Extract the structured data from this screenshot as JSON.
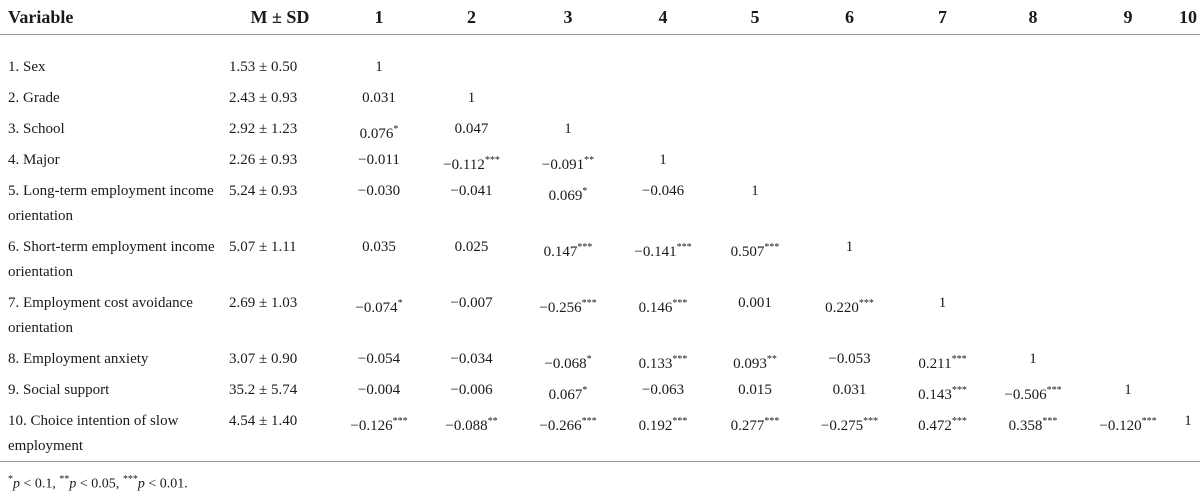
{
  "headers": [
    "Variable",
    "M ± SD",
    "1",
    "2",
    "3",
    "4",
    "5",
    "6",
    "7",
    "8",
    "9",
    "10"
  ],
  "rows": [
    {
      "label": "1. Sex",
      "msd": "1.53 ± 0.50",
      "cells": [
        "1",
        "",
        "",
        "",
        "",
        "",
        "",
        "",
        "",
        ""
      ]
    },
    {
      "label": "2. Grade",
      "msd": "2.43 ± 0.93",
      "cells": [
        "0.031",
        "1",
        "",
        "",
        "",
        "",
        "",
        "",
        "",
        ""
      ]
    },
    {
      "label": "3. School",
      "msd": "2.92 ± 1.23",
      "cells": [
        "0.076*",
        "0.047",
        "1",
        "",
        "",
        "",
        "",
        "",
        "",
        ""
      ]
    },
    {
      "label": "4. Major",
      "msd": "2.26 ± 0.93",
      "cells": [
        "−0.011",
        "−0.112***",
        "−0.091**",
        "1",
        "",
        "",
        "",
        "",
        "",
        ""
      ]
    },
    {
      "label": "5. Long-term employment income orientation",
      "msd": "5.24 ± 0.93",
      "cells": [
        "−0.030",
        "−0.041",
        "0.069*",
        "−0.046",
        "1",
        "",
        "",
        "",
        "",
        ""
      ]
    },
    {
      "label": "6. Short-term employment income orientation",
      "msd": "5.07 ± 1.11",
      "cells": [
        "0.035",
        "0.025",
        "0.147***",
        "−0.141***",
        "0.507***",
        "1",
        "",
        "",
        "",
        ""
      ]
    },
    {
      "label": "7. Employment cost avoidance orientation",
      "msd": "2.69 ± 1.03",
      "cells": [
        "−0.074*",
        "−0.007",
        "−0.256***",
        "0.146***",
        "0.001",
        "0.220***",
        "1",
        "",
        "",
        ""
      ]
    },
    {
      "label": "8. Employment anxiety",
      "msd": "3.07 ± 0.90",
      "cells": [
        "−0.054",
        "−0.034",
        "−0.068*",
        "0.133***",
        "0.093**",
        "−0.053",
        "0.211***",
        "1",
        "",
        ""
      ]
    },
    {
      "label": "9. Social support",
      "msd": "35.2 ± 5.74",
      "cells": [
        "−0.004",
        "−0.006",
        "0.067*",
        "−0.063",
        "0.015",
        "0.031",
        "0.143***",
        "−0.506***",
        "1",
        ""
      ]
    },
    {
      "label": "10. Choice intention of slow employment",
      "msd": "4.54 ± 1.40",
      "cells": [
        "−0.126***",
        "−0.088**",
        "−0.266***",
        "0.192***",
        "0.277***",
        "−0.275***",
        "0.472***",
        "0.358***",
        "−0.120***",
        "1"
      ]
    }
  ],
  "footnote": "*p < 0.1, **p < 0.05, ***p < 0.01."
}
